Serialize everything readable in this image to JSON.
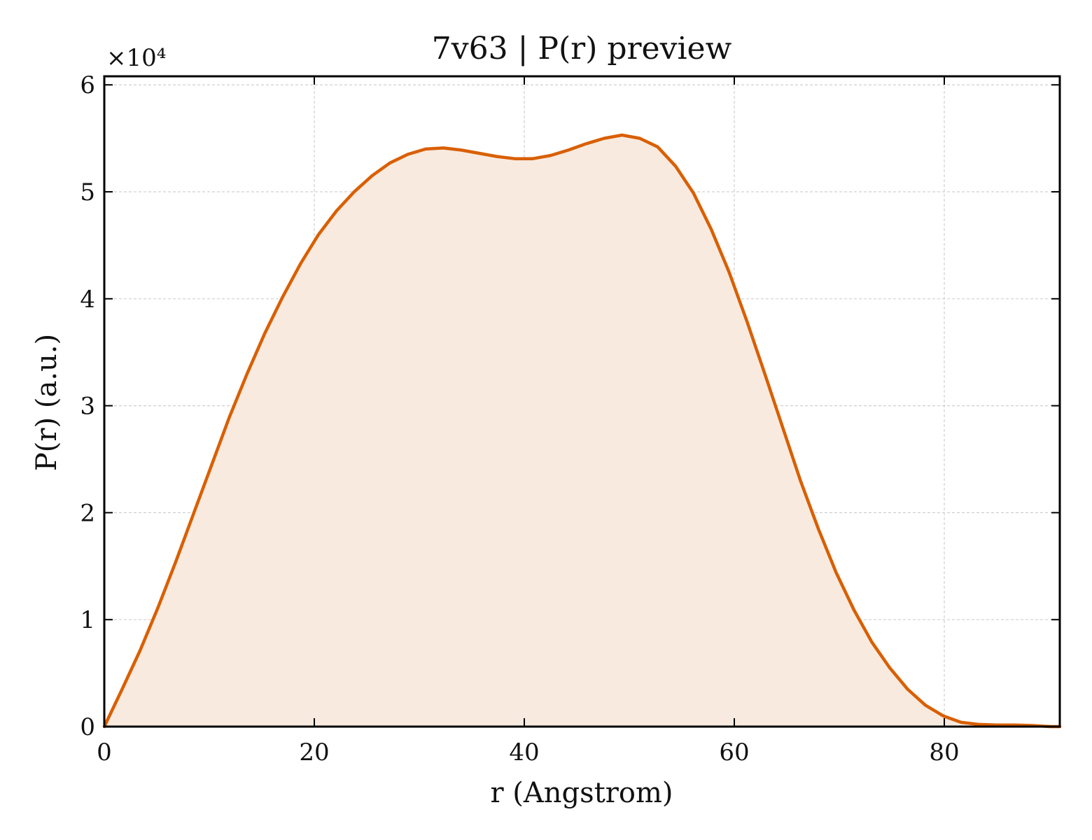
{
  "chart_data": {
    "type": "area",
    "title": "7v63 | P(r) preview",
    "xlabel": "r (Angstrom)",
    "ylabel": "P(r) (a.u.)",
    "y_multiplier_label": "×10⁴",
    "xlim": [
      0,
      91
    ],
    "ylim": [
      0,
      60800
    ],
    "x_ticks": [
      0,
      20,
      40,
      60,
      80
    ],
    "y_ticks": [
      0,
      10000,
      20000,
      30000,
      40000,
      50000,
      60000
    ],
    "x_tick_labels": [
      "0",
      "20",
      "40",
      "60",
      "80"
    ],
    "y_tick_labels": [
      "0",
      "1",
      "2",
      "3",
      "4",
      "5",
      "6"
    ],
    "grid": true,
    "line_color": "#d95f02",
    "fill_color": "#f8eadf",
    "series": [
      {
        "x": [
          0,
          1.7,
          3.4,
          5.1,
          6.8,
          8.5,
          10.2,
          11.9,
          13.6,
          15.3,
          17.0,
          18.7,
          20.4,
          22.1,
          23.8,
          25.5,
          27.2,
          28.9,
          30.6,
          32.3,
          34.0,
          35.7,
          37.4,
          39.1,
          40.8,
          42.5,
          44.2,
          45.9,
          47.6,
          49.3,
          51.0,
          52.7,
          54.4,
          56.1,
          57.8,
          59.5,
          61.2,
          62.9,
          64.6,
          66.3,
          68.0,
          69.7,
          71.4,
          73.1,
          74.8,
          76.5,
          78.2,
          79.9,
          81.6,
          83.3,
          85.0,
          86.7,
          88.4,
          90.1,
          91.0
        ],
        "y": [
          0,
          3500,
          7100,
          11100,
          15400,
          19900,
          24400,
          28900,
          33000,
          36800,
          40200,
          43300,
          46000,
          48200,
          50000,
          51500,
          52700,
          53500,
          54000,
          54100,
          53900,
          53600,
          53300,
          53100,
          53100,
          53400,
          53900,
          54500,
          55000,
          55300,
          55000,
          54200,
          52400,
          49900,
          46500,
          42500,
          37900,
          33000,
          28000,
          23000,
          18500,
          14400,
          10900,
          7900,
          5500,
          3500,
          2000,
          1000,
          400,
          200,
          150,
          150,
          100,
          0,
          0
        ]
      }
    ]
  }
}
